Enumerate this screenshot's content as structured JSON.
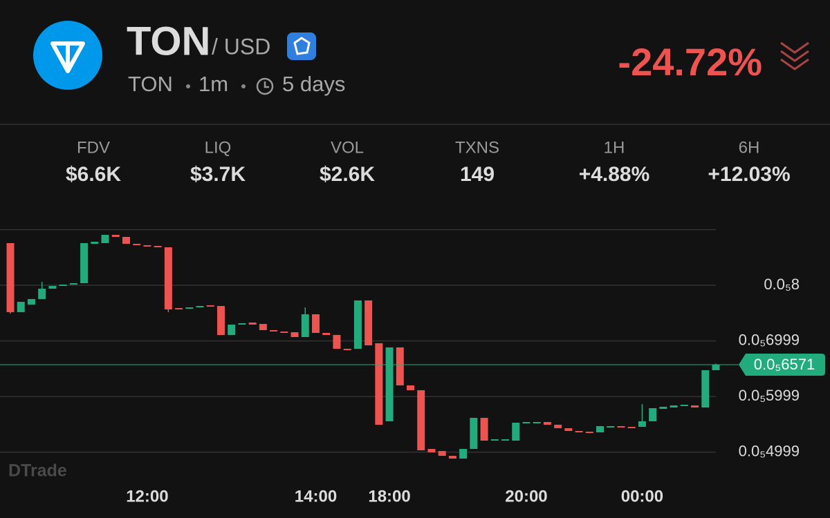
{
  "header": {
    "symbol": "TON",
    "quote": "/ USD",
    "base": "TON",
    "interval": "1m",
    "age": "5 days",
    "change": "-24.72%"
  },
  "stats": [
    {
      "label": "FDV",
      "value": "$6.6K"
    },
    {
      "label": "LIQ",
      "value": "$3.7K"
    },
    {
      "label": "VOL",
      "value": "$2.6K"
    },
    {
      "label": "TXNS",
      "value": "149"
    },
    {
      "label": "1H",
      "value": "+4.88%"
    },
    {
      "label": "6H",
      "value": "+12.03%"
    }
  ],
  "watermark": "DTrade",
  "chart_data": {
    "type": "candlestick",
    "up_color": "#22ab7c",
    "down_color": "#ee5350",
    "grid": true,
    "ylim": [
      4.559e-06,
      9.404e-06
    ],
    "yticks": [
      {
        "value": 9e-06,
        "label": null
      },
      {
        "value": 8e-06,
        "label": "0.0₅8"
      },
      {
        "value": 6.999e-06,
        "label": "0.0₅6999"
      },
      {
        "value": 5.999e-06,
        "label": "0.0₅5999"
      },
      {
        "value": 4.999e-06,
        "label": "0.0₅4999"
      }
    ],
    "last_price": {
      "value": 6.571e-06,
      "label": "0.0₅6571"
    },
    "categories": [
      null,
      null,
      null,
      null,
      null,
      null,
      null,
      null,
      null,
      null,
      null,
      null,
      null,
      "12:00",
      null,
      null,
      null,
      null,
      null,
      null,
      null,
      null,
      null,
      null,
      null,
      null,
      null,
      null,
      null,
      "14:00",
      null,
      null,
      null,
      null,
      null,
      null,
      "18:00",
      null,
      null,
      null,
      null,
      null,
      null,
      null,
      null,
      null,
      null,
      null,
      null,
      "20:00",
      null,
      null,
      null,
      null,
      null,
      null,
      null,
      null,
      null,
      null,
      "00:00",
      null,
      null,
      null,
      null,
      null,
      null,
      null
    ],
    "candles": [
      [
        8.758e-06,
        8.758e-06,
        7.49e-06,
        7.516e-06
      ],
      [
        7.516e-06,
        7.702e-06,
        7.516e-06,
        7.702e-06
      ],
      [
        7.652e-06,
        7.752e-06,
        7.652e-06,
        7.752e-06
      ],
      [
        7.752e-06,
        8.062e-06,
        7.752e-06,
        7.938e-06
      ],
      [
        7.938e-06,
        7.988e-06,
        7.938e-06,
        7.988e-06
      ],
      [
        7.988e-06,
        8.012e-06,
        7.988e-06,
        8.012e-06
      ],
      [
        8.012e-06,
        8.037e-06,
        8.012e-06,
        8.037e-06
      ],
      [
        8.037e-06,
        8.758e-06,
        8.037e-06,
        8.758e-06
      ],
      [
        8.745e-06,
        8.783e-06,
        8.745e-06,
        8.783e-06
      ],
      [
        8.758e-06,
        8.907e-06,
        8.758e-06,
        8.907e-06
      ],
      [
        8.907e-06,
        8.907e-06,
        8.87e-06,
        8.87e-06
      ],
      [
        8.87e-06,
        8.87e-06,
        8.745e-06,
        8.745e-06
      ],
      [
        8.745e-06,
        8.745e-06,
        8.72e-06,
        8.72e-06
      ],
      [
        8.72e-06,
        8.72e-06,
        8.708e-06,
        8.708e-06
      ],
      [
        8.708e-06,
        8.708e-06,
        8.683e-06,
        8.683e-06
      ],
      [
        8.683e-06,
        8.683e-06,
        7.516e-06,
        7.565e-06
      ],
      [
        7.59e-06,
        7.59e-06,
        7.565e-06,
        7.565e-06
      ],
      [
        7.578e-06,
        7.602e-06,
        7.578e-06,
        7.602e-06
      ],
      [
        7.602e-06,
        7.627e-06,
        7.602e-06,
        7.627e-06
      ],
      [
        7.64e-06,
        7.64e-06,
        7.627e-06,
        7.627e-06
      ],
      [
        7.627e-06,
        7.627e-06,
        7.106e-06,
        7.106e-06
      ],
      [
        7.106e-06,
        7.292e-06,
        7.106e-06,
        7.292e-06
      ],
      [
        7.292e-06,
        7.317e-06,
        7.292e-06,
        7.317e-06
      ],
      [
        7.329e-06,
        7.329e-06,
        7.292e-06,
        7.292e-06
      ],
      [
        7.304e-06,
        7.304e-06,
        7.193e-06,
        7.193e-06
      ],
      [
        7.193e-06,
        7.193e-06,
        7.168e-06,
        7.168e-06
      ],
      [
        7.168e-06,
        7.168e-06,
        7.155e-06,
        7.155e-06
      ],
      [
        7.155e-06,
        7.155e-06,
        7.068e-06,
        7.068e-06
      ],
      [
        7.068e-06,
        7.602e-06,
        7.068e-06,
        7.478e-06
      ],
      [
        7.478e-06,
        7.478e-06,
        7.143e-06,
        7.143e-06
      ],
      [
        7.143e-06,
        7.143e-06,
        7.106e-06,
        7.106e-06
      ],
      [
        7.106e-06,
        7.106e-06,
        6.857e-06,
        6.857e-06
      ],
      [
        6.857e-06,
        6.857e-06,
        6.832e-06,
        6.832e-06
      ],
      [
        6.857e-06,
        7.727e-06,
        6.857e-06,
        7.727e-06
      ],
      [
        7.727e-06,
        7.727e-06,
        6.919e-06,
        6.919e-06
      ],
      [
        6.957e-06,
        6.957e-06,
        5.491e-06,
        5.491e-06
      ],
      [
        5.553e-06,
        6.882e-06,
        5.553e-06,
        6.882e-06
      ],
      [
        6.882e-06,
        6.882e-06,
        6.199e-06,
        6.199e-06
      ],
      [
        6.199e-06,
        6.199e-06,
        6.112e-06,
        6.112e-06
      ],
      [
        6.112e-06,
        6.112e-06,
        5.031e-06,
        5.031e-06
      ],
      [
        5.056e-06,
        5.056e-06,
        4.994e-06,
        4.994e-06
      ],
      [
        5.019e-06,
        5.019e-06,
        4.932e-06,
        4.932e-06
      ],
      [
        4.932e-06,
        4.932e-06,
        4.882e-06,
        4.882e-06
      ],
      [
        4.882e-06,
        5.056e-06,
        4.882e-06,
        5.056e-06
      ],
      [
        5.056e-06,
        5.615e-06,
        5.056e-06,
        5.615e-06
      ],
      [
        5.615e-06,
        5.615e-06,
        5.205e-06,
        5.205e-06
      ],
      [
        5.205e-06,
        5.23e-06,
        5.205e-06,
        5.23e-06
      ],
      [
        5.217e-06,
        5.23e-06,
        5.217e-06,
        5.23e-06
      ],
      [
        5.205e-06,
        5.528e-06,
        5.205e-06,
        5.528e-06
      ],
      [
        5.516e-06,
        5.54e-06,
        5.516e-06,
        5.54e-06
      ],
      [
        5.528e-06,
        5.54e-06,
        5.528e-06,
        5.54e-06
      ],
      [
        5.54e-06,
        5.54e-06,
        5.491e-06,
        5.491e-06
      ],
      [
        5.491e-06,
        5.491e-06,
        5.429e-06,
        5.429e-06
      ],
      [
        5.429e-06,
        5.429e-06,
        5.379e-06,
        5.379e-06
      ],
      [
        5.379e-06,
        5.379e-06,
        5.354e-06,
        5.354e-06
      ],
      [
        5.366e-06,
        5.366e-06,
        5.342e-06,
        5.342e-06
      ],
      [
        5.354e-06,
        5.466e-06,
        5.354e-06,
        5.466e-06
      ],
      [
        5.453e-06,
        5.466e-06,
        5.453e-06,
        5.466e-06
      ],
      [
        5.466e-06,
        5.466e-06,
        5.453e-06,
        5.453e-06
      ],
      [
        5.453e-06,
        5.453e-06,
        5.441e-06,
        5.441e-06
      ],
      [
        5.453e-06,
        5.863e-06,
        5.453e-06,
        5.553e-06
      ],
      [
        5.553e-06,
        5.789e-06,
        5.553e-06,
        5.789e-06
      ],
      [
        5.776e-06,
        5.814e-06,
        5.776e-06,
        5.814e-06
      ],
      [
        5.801e-06,
        5.839e-06,
        5.801e-06,
        5.839e-06
      ],
      [
        5.826e-06,
        5.851e-06,
        5.826e-06,
        5.851e-06
      ],
      [
        5.839e-06,
        5.839e-06,
        5.801e-06,
        5.801e-06
      ],
      [
        5.801e-06,
        6.472e-06,
        5.801e-06,
        6.472e-06
      ],
      [
        6.472e-06,
        6.59e-06,
        6.472e-06,
        6.571e-06
      ]
    ]
  }
}
